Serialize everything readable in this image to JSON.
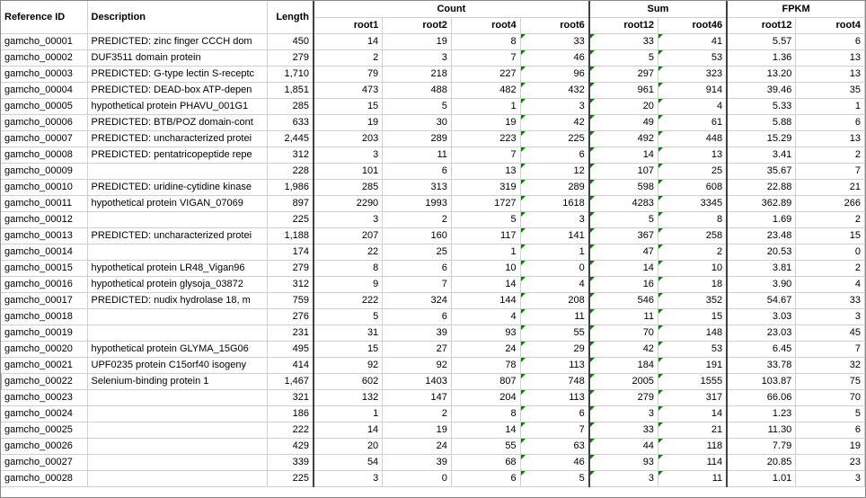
{
  "groupHeaders": {
    "count": "Count",
    "sum": "Sum",
    "fpkm": "FPKM"
  },
  "columns": {
    "ref": "Reference ID",
    "desc": "Description",
    "length": "Length",
    "root1": "root1",
    "root2": "root2",
    "root4": "root4",
    "root6": "root6",
    "sum_root12": "root12",
    "sum_root46": "root46",
    "fpkm_root12": "root12",
    "fpkm_root4": "root4"
  },
  "rows": [
    {
      "ref": "gamcho_00001",
      "desc": "PREDICTED: zinc finger CCCH dom",
      "length": "450",
      "r1": "14",
      "r2": "19",
      "r4": "8",
      "r6": "33",
      "s12": "33",
      "s46": "41",
      "f12": "5.57",
      "f4": "6",
      "tickR6": true,
      "tickS12": true,
      "tickS46": true
    },
    {
      "ref": "gamcho_00002",
      "desc": "DUF3511 domain protein",
      "length": "279",
      "r1": "2",
      "r2": "3",
      "r4": "7",
      "r6": "46",
      "s12": "5",
      "s46": "53",
      "f12": "1.36",
      "f4": "13",
      "tickR6": true,
      "tickS12": true,
      "tickS46": true
    },
    {
      "ref": "gamcho_00003",
      "desc": "PREDICTED: G-type lectin S-receptc",
      "length": "1,710",
      "r1": "79",
      "r2": "218",
      "r4": "227",
      "r6": "96",
      "s12": "297",
      "s46": "323",
      "f12": "13.20",
      "f4": "13",
      "tickR6": true,
      "tickS12": true,
      "tickS46": true
    },
    {
      "ref": "gamcho_00004",
      "desc": "PREDICTED: DEAD-box ATP-depen",
      "length": "1,851",
      "r1": "473",
      "r2": "488",
      "r4": "482",
      "r6": "432",
      "s12": "961",
      "s46": "914",
      "f12": "39.46",
      "f4": "35",
      "tickR6": true,
      "tickS12": true,
      "tickS46": true
    },
    {
      "ref": "gamcho_00005",
      "desc": "hypothetical protein PHAVU_001G1",
      "length": "285",
      "r1": "15",
      "r2": "5",
      "r4": "1",
      "r6": "3",
      "s12": "20",
      "s46": "4",
      "f12": "5.33",
      "f4": "1",
      "tickR6": true,
      "tickS12": true,
      "tickS46": true
    },
    {
      "ref": "gamcho_00006",
      "desc": "PREDICTED: BTB/POZ domain-cont",
      "length": "633",
      "r1": "19",
      "r2": "30",
      "r4": "19",
      "r6": "42",
      "s12": "49",
      "s46": "61",
      "f12": "5.88",
      "f4": "6",
      "tickR6": true,
      "tickS12": true,
      "tickS46": true
    },
    {
      "ref": "gamcho_00007",
      "desc": "PREDICTED: uncharacterized protei",
      "length": "2,445",
      "r1": "203",
      "r2": "289",
      "r4": "223",
      "r6": "225",
      "s12": "492",
      "s46": "448",
      "f12": "15.29",
      "f4": "13",
      "tickR6": true,
      "tickS12": true,
      "tickS46": true
    },
    {
      "ref": "gamcho_00008",
      "desc": "PREDICTED: pentatricopeptide repe",
      "length": "312",
      "r1": "3",
      "r2": "11",
      "r4": "7",
      "r6": "6",
      "s12": "14",
      "s46": "13",
      "f12": "3.41",
      "f4": "2",
      "tickR6": true,
      "tickS12": true,
      "tickS46": true
    },
    {
      "ref": "gamcho_00009",
      "desc": "",
      "length": "228",
      "r1": "101",
      "r2": "6",
      "r4": "13",
      "r6": "12",
      "s12": "107",
      "s46": "25",
      "f12": "35.67",
      "f4": "7",
      "tickR6": true,
      "tickS12": true,
      "tickS46": true
    },
    {
      "ref": "gamcho_00010",
      "desc": "PREDICTED: uridine-cytidine kinase",
      "length": "1,986",
      "r1": "285",
      "r2": "313",
      "r4": "319",
      "r6": "289",
      "s12": "598",
      "s46": "608",
      "f12": "22.88",
      "f4": "21",
      "tickR6": true,
      "tickS12": true,
      "tickS46": true
    },
    {
      "ref": "gamcho_00011",
      "desc": "hypothetical protein VIGAN_07069",
      "length": "897",
      "r1": "2290",
      "r2": "1993",
      "r4": "1727",
      "r6": "1618",
      "s12": "4283",
      "s46": "3345",
      "f12": "362.89",
      "f4": "266",
      "tickR6": true,
      "tickS12": true,
      "tickS46": true
    },
    {
      "ref": "gamcho_00012",
      "desc": "",
      "length": "225",
      "r1": "3",
      "r2": "2",
      "r4": "5",
      "r6": "3",
      "s12": "5",
      "s46": "8",
      "f12": "1.69",
      "f4": "2",
      "tickR6": true,
      "tickS12": true,
      "tickS46": true
    },
    {
      "ref": "gamcho_00013",
      "desc": "PREDICTED: uncharacterized protei",
      "length": "1,188",
      "r1": "207",
      "r2": "160",
      "r4": "117",
      "r6": "141",
      "s12": "367",
      "s46": "258",
      "f12": "23.48",
      "f4": "15",
      "tickR6": true,
      "tickS12": true,
      "tickS46": true
    },
    {
      "ref": "gamcho_00014",
      "desc": "",
      "length": "174",
      "r1": "22",
      "r2": "25",
      "r4": "1",
      "r6": "1",
      "s12": "47",
      "s46": "2",
      "f12": "20.53",
      "f4": "0",
      "tickR6": true,
      "tickS12": true,
      "tickS46": true
    },
    {
      "ref": "gamcho_00015",
      "desc": "hypothetical protein LR48_Vigan96",
      "length": "279",
      "r1": "8",
      "r2": "6",
      "r4": "10",
      "r6": "0",
      "s12": "14",
      "s46": "10",
      "f12": "3.81",
      "f4": "2",
      "tickR6": true,
      "tickS12": true,
      "tickS46": true
    },
    {
      "ref": "gamcho_00016",
      "desc": "hypothetical protein glysoja_03872",
      "length": "312",
      "r1": "9",
      "r2": "7",
      "r4": "14",
      "r6": "4",
      "s12": "16",
      "s46": "18",
      "f12": "3.90",
      "f4": "4",
      "tickR6": true,
      "tickS12": true,
      "tickS46": true
    },
    {
      "ref": "gamcho_00017",
      "desc": "PREDICTED: nudix hydrolase 18, m",
      "length": "759",
      "r1": "222",
      "r2": "324",
      "r4": "144",
      "r6": "208",
      "s12": "546",
      "s46": "352",
      "f12": "54.67",
      "f4": "33",
      "tickR6": true,
      "tickS12": true,
      "tickS46": true
    },
    {
      "ref": "gamcho_00018",
      "desc": "",
      "length": "276",
      "r1": "5",
      "r2": "6",
      "r4": "4",
      "r6": "11",
      "s12": "11",
      "s46": "15",
      "f12": "3.03",
      "f4": "3",
      "tickR6": true,
      "tickS12": true,
      "tickS46": true
    },
    {
      "ref": "gamcho_00019",
      "desc": "",
      "length": "231",
      "r1": "31",
      "r2": "39",
      "r4": "93",
      "r6": "55",
      "s12": "70",
      "s46": "148",
      "f12": "23.03",
      "f4": "45",
      "tickR6": true,
      "tickS12": true,
      "tickS46": true
    },
    {
      "ref": "gamcho_00020",
      "desc": "hypothetical protein GLYMA_15G06",
      "length": "495",
      "r1": "15",
      "r2": "27",
      "r4": "24",
      "r6": "29",
      "s12": "42",
      "s46": "53",
      "f12": "6.45",
      "f4": "7",
      "tickR6": true,
      "tickS12": true,
      "tickS46": true
    },
    {
      "ref": "gamcho_00021",
      "desc": "UPF0235 protein C15orf40 isogeny",
      "length": "414",
      "r1": "92",
      "r2": "92",
      "r4": "78",
      "r6": "113",
      "s12": "184",
      "s46": "191",
      "f12": "33.78",
      "f4": "32",
      "tickR6": true,
      "tickS12": true,
      "tickS46": true
    },
    {
      "ref": "gamcho_00022",
      "desc": "Selenium-binding protein 1",
      "length": "1,467",
      "r1": "602",
      "r2": "1403",
      "r4": "807",
      "r6": "748",
      "s12": "2005",
      "s46": "1555",
      "f12": "103.87",
      "f4": "75",
      "tickR6": true,
      "tickS12": true,
      "tickS46": true,
      "rowMark": true
    },
    {
      "ref": "gamcho_00023",
      "desc": "",
      "length": "321",
      "r1": "132",
      "r2": "147",
      "r4": "204",
      "r6": "113",
      "s12": "279",
      "s46": "317",
      "f12": "66.06",
      "f4": "70",
      "tickR6": true,
      "tickS12": true,
      "tickS46": true
    },
    {
      "ref": "gamcho_00024",
      "desc": "",
      "length": "186",
      "r1": "1",
      "r2": "2",
      "r4": "8",
      "r6": "6",
      "s12": "3",
      "s46": "14",
      "f12": "1.23",
      "f4": "5",
      "tickR6": true,
      "tickS12": true,
      "tickS46": true
    },
    {
      "ref": "gamcho_00025",
      "desc": "",
      "length": "222",
      "r1": "14",
      "r2": "19",
      "r4": "14",
      "r6": "7",
      "s12": "33",
      "s46": "21",
      "f12": "11.30",
      "f4": "6",
      "tickR6": true,
      "tickS12": true,
      "tickS46": true
    },
    {
      "ref": "gamcho_00026",
      "desc": "",
      "length": "429",
      "r1": "20",
      "r2": "24",
      "r4": "55",
      "r6": "63",
      "s12": "44",
      "s46": "118",
      "f12": "7.79",
      "f4": "19",
      "tickR6": true,
      "tickS12": true,
      "tickS46": true
    },
    {
      "ref": "gamcho_00027",
      "desc": "",
      "length": "339",
      "r1": "54",
      "r2": "39",
      "r4": "68",
      "r6": "46",
      "s12": "93",
      "s46": "114",
      "f12": "20.85",
      "f4": "23",
      "tickR6": true,
      "tickS12": true,
      "tickS46": true
    },
    {
      "ref": "gamcho_00028",
      "desc": "",
      "length": "225",
      "r1": "3",
      "r2": "0",
      "r4": "6",
      "r6": "5",
      "s12": "3",
      "s46": "11",
      "f12": "1.01",
      "f4": "3",
      "tickR6": true,
      "tickS12": true,
      "tickS46": true
    }
  ]
}
